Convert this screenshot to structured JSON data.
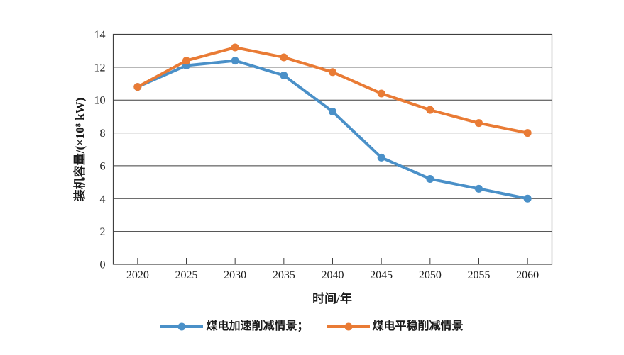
{
  "page": {
    "background_color": "#ffffff",
    "text_color": "#1a1a1a",
    "gridline_color": "#3f3f3f"
  },
  "chart_data": {
    "type": "line",
    "title": "",
    "xlabel": "时间/年",
    "ylabel": "装机容量/(×10⁸ kW)",
    "categories": [
      2020,
      2025,
      2030,
      2035,
      2040,
      2045,
      2050,
      2055,
      2060
    ],
    "yticks": [
      0,
      2,
      4,
      6,
      8,
      10,
      12,
      14
    ],
    "ylim": [
      0,
      14
    ],
    "grid": "horizontal",
    "plot_border": true,
    "series": [
      {
        "id": "accelerated",
        "name": "煤电加速削减情景",
        "color": "#4A90C8",
        "values": [
          10.8,
          12.1,
          12.4,
          11.5,
          9.3,
          6.5,
          5.2,
          4.6,
          4.0
        ]
      },
      {
        "id": "steady",
        "name": "煤电平稳削减情景",
        "color": "#E97B35",
        "values": [
          10.8,
          12.4,
          13.2,
          12.6,
          11.7,
          10.4,
          9.4,
          8.6,
          8.0
        ]
      }
    ],
    "legend": {
      "position": "bottom-center",
      "items": [
        {
          "id": "accelerated",
          "label": "煤电加速削减情景；"
        },
        {
          "id": "steady",
          "label": "煤电平稳削减情景"
        }
      ]
    }
  }
}
